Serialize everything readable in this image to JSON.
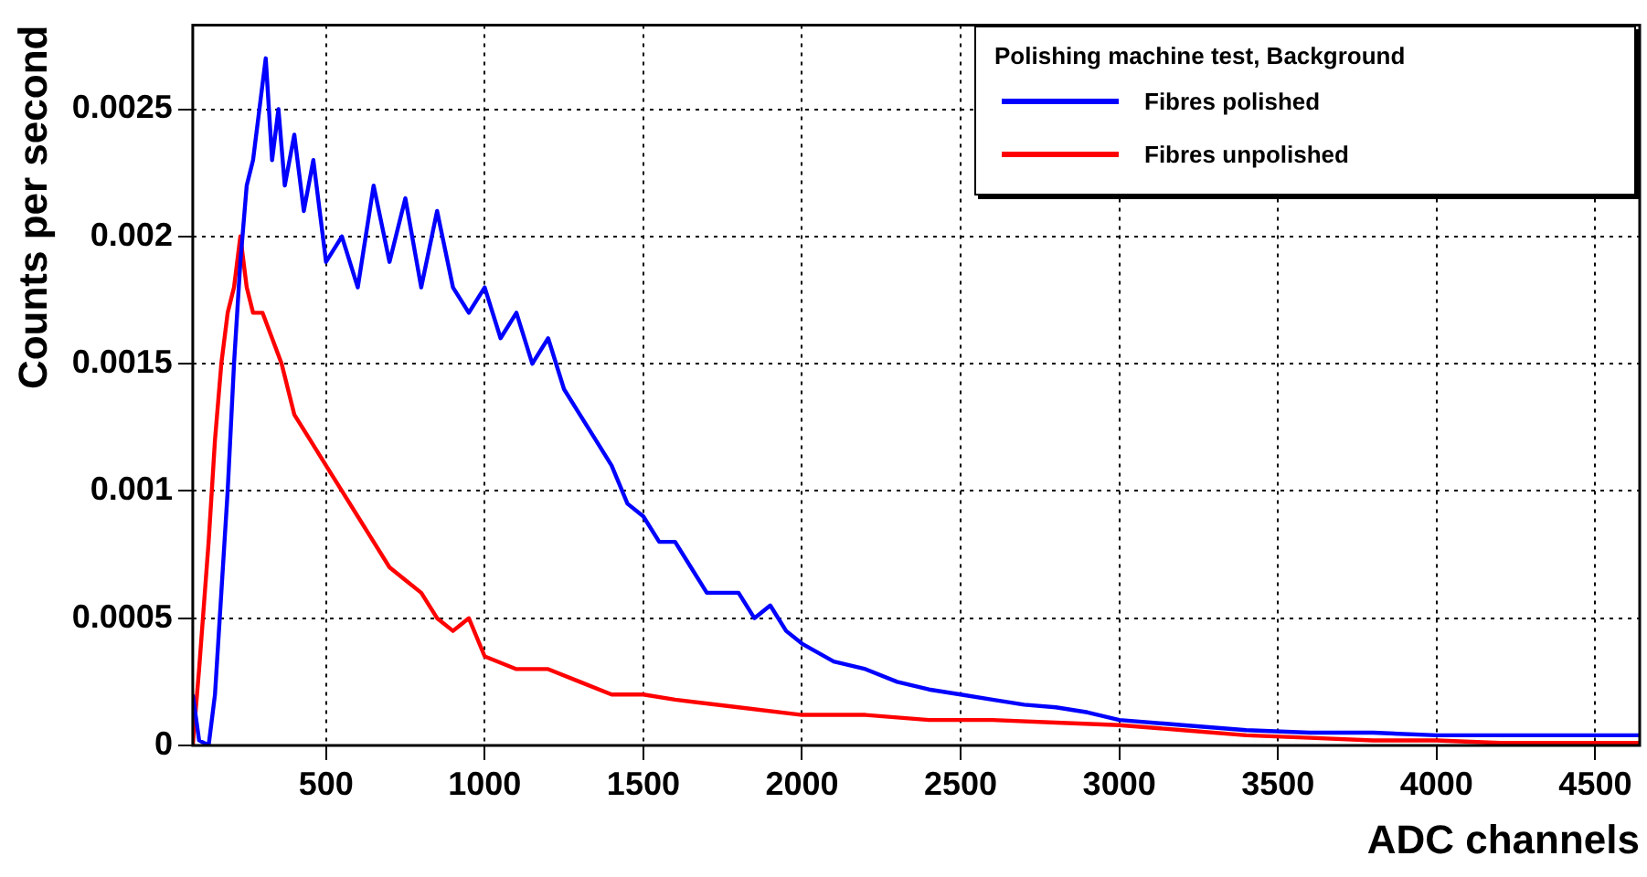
{
  "chart_data": {
    "type": "line",
    "xlabel": "ADC channels",
    "ylabel": "Counts per second",
    "legend_title": "Polishing machine test, Background",
    "legend": "top right",
    "grid": true,
    "marker": "none",
    "line_style": "solid",
    "xlim": [
      80,
      4640
    ],
    "xticks": [
      500,
      1000,
      1500,
      2000,
      2500,
      3000,
      3500,
      4000,
      4500
    ],
    "ylim": [
      0,
      0.00283
    ],
    "yticks": [
      0,
      0.0005,
      0.001,
      0.0015,
      0.002,
      0.0025
    ],
    "series": [
      {
        "name": "Fibres polished",
        "color": "#0000ff",
        "x": [
          80,
          100,
          130,
          150,
          170,
          190,
          210,
          230,
          250,
          270,
          290,
          310,
          330,
          350,
          370,
          400,
          430,
          460,
          500,
          550,
          600,
          650,
          700,
          750,
          800,
          850,
          900,
          950,
          1000,
          1050,
          1100,
          1150,
          1200,
          1250,
          1300,
          1350,
          1400,
          1450,
          1500,
          1550,
          1600,
          1650,
          1700,
          1750,
          1800,
          1850,
          1900,
          1950,
          2000,
          2100,
          2200,
          2300,
          2400,
          2500,
          2600,
          2700,
          2800,
          2900,
          3000,
          3200,
          3400,
          3600,
          3800,
          4000,
          4200,
          4400,
          4640
        ],
        "values": [
          0.0002,
          2e-05,
          0,
          0.0002,
          0.0006,
          0.001,
          0.0015,
          0.0019,
          0.0022,
          0.0023,
          0.0025,
          0.0027,
          0.0023,
          0.0025,
          0.0022,
          0.0024,
          0.0021,
          0.0023,
          0.0019,
          0.002,
          0.0018,
          0.0022,
          0.0019,
          0.00215,
          0.0018,
          0.0021,
          0.0018,
          0.0017,
          0.0018,
          0.0016,
          0.0017,
          0.0015,
          0.0016,
          0.0014,
          0.0013,
          0.0012,
          0.0011,
          0.00095,
          0.0009,
          0.0008,
          0.0008,
          0.0007,
          0.0006,
          0.0006,
          0.0006,
          0.0005,
          0.00055,
          0.00045,
          0.0004,
          0.00033,
          0.0003,
          0.00025,
          0.00022,
          0.0002,
          0.00018,
          0.00016,
          0.00015,
          0.00013,
          0.0001,
          8e-05,
          6e-05,
          5e-05,
          5e-05,
          4e-05,
          4e-05,
          4e-05,
          4e-05
        ]
      },
      {
        "name": "Fibres unpolished",
        "color": "#ff0000",
        "x": [
          80,
          100,
          130,
          150,
          170,
          190,
          210,
          230,
          250,
          270,
          300,
          330,
          360,
          400,
          450,
          500,
          550,
          600,
          650,
          700,
          750,
          800,
          850,
          900,
          950,
          1000,
          1100,
          1200,
          1300,
          1400,
          1500,
          1600,
          1800,
          2000,
          2200,
          2400,
          2600,
          2800,
          3000,
          3200,
          3400,
          3600,
          3800,
          4000,
          4200,
          4400,
          4640
        ],
        "values": [
          0,
          0.0003,
          0.0008,
          0.0012,
          0.0015,
          0.0017,
          0.0018,
          0.002,
          0.0018,
          0.0017,
          0.0017,
          0.0016,
          0.0015,
          0.0013,
          0.0012,
          0.0011,
          0.001,
          0.0009,
          0.0008,
          0.0007,
          0.00065,
          0.0006,
          0.0005,
          0.00045,
          0.0005,
          0.00035,
          0.0003,
          0.0003,
          0.00025,
          0.0002,
          0.0002,
          0.00018,
          0.00015,
          0.00012,
          0.00012,
          0.0001,
          0.0001,
          9e-05,
          8e-05,
          6e-05,
          4e-05,
          3e-05,
          2e-05,
          2e-05,
          1e-05,
          1e-05,
          1e-05
        ]
      }
    ]
  }
}
